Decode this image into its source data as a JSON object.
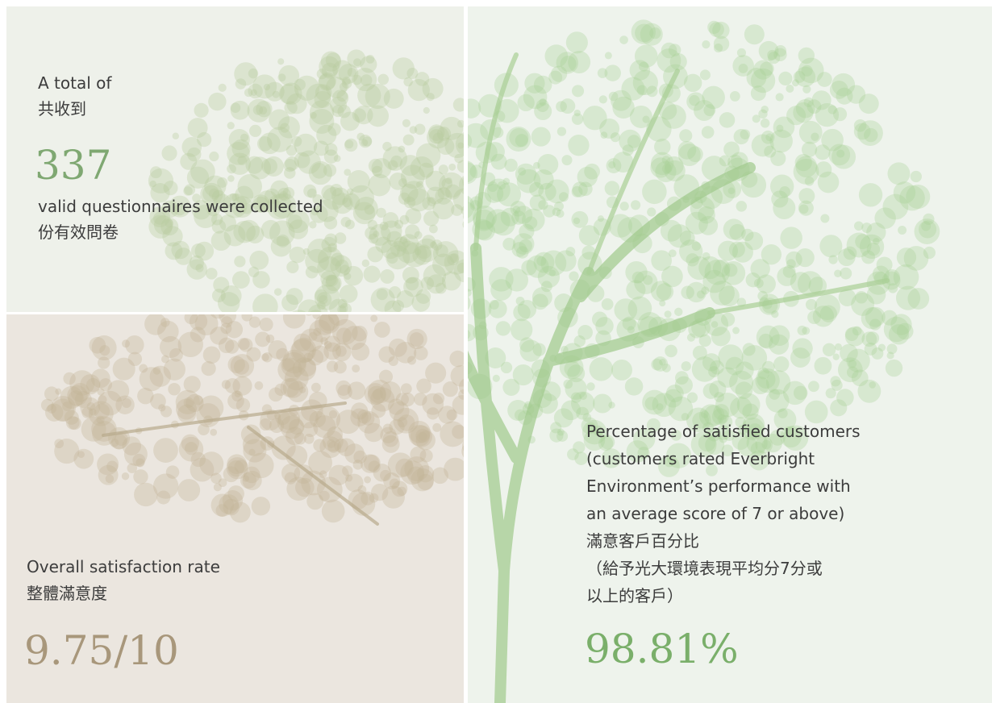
{
  "panels": [
    {
      "lines_before": [
        "A total of",
        "共收到"
      ],
      "figure": "337",
      "lines_after": [
        "valid questionnaires were collected",
        "份有效問卷"
      ]
    },
    {
      "lines_before": [
        "Overall satisfaction rate",
        "整體滿意度"
      ],
      "figure": "9.75/10"
    },
    {
      "lines_before": [
        "Percentage of satisfied customers",
        "(customers rated Everbright",
        "Environment’s performance with",
        "an average score of 7 or above)",
        "滿意客戶百分比",
        "（給予光大環境表現平均分7分或",
        "以上的客戶）"
      ],
      "figure": "98.81%"
    }
  ]
}
